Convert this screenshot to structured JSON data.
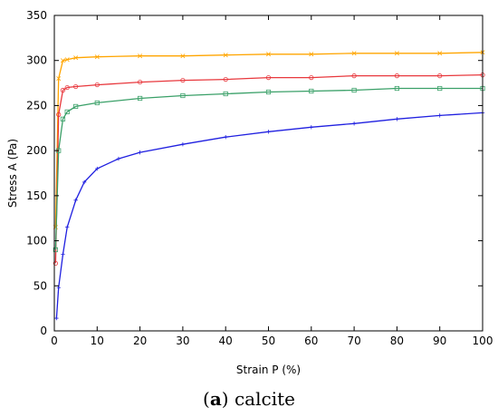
{
  "caption": {
    "open": "(",
    "letter": "a",
    "close": ")",
    "text": " calcite"
  },
  "chart_data": {
    "type": "line",
    "xlabel": "Strain P (%)",
    "ylabel": "Stress A (Pa)",
    "xlim": [
      0,
      100
    ],
    "ylim": [
      0,
      350
    ],
    "xticks": [
      0,
      10,
      20,
      30,
      40,
      50,
      60,
      70,
      80,
      90,
      100
    ],
    "yticks": [
      0,
      50,
      100,
      150,
      200,
      250,
      300,
      350
    ],
    "grid": false,
    "legend": "none",
    "series": [
      {
        "color": "#ffa500",
        "marker": "x",
        "x": [
          0.3,
          1,
          2,
          3,
          5,
          10,
          20,
          30,
          40,
          50,
          60,
          70,
          80,
          90,
          100
        ],
        "y": [
          115,
          280,
          300,
          301,
          303,
          304,
          305,
          305,
          306,
          307,
          307,
          308,
          308,
          308,
          309
        ]
      },
      {
        "color": "#e8383d",
        "marker": "circle",
        "x": [
          0.3,
          1,
          2,
          3,
          5,
          10,
          20,
          30,
          40,
          50,
          60,
          70,
          80,
          90,
          100
        ],
        "y": [
          75,
          240,
          267,
          270,
          271,
          273,
          276,
          278,
          279,
          281,
          281,
          283,
          283,
          283,
          284
        ]
      },
      {
        "color": "#3aa068",
        "marker": "square",
        "x": [
          0.3,
          1,
          2,
          3,
          5,
          10,
          20,
          30,
          40,
          50,
          60,
          70,
          80,
          90,
          100
        ],
        "y": [
          90,
          200,
          235,
          243,
          249,
          253,
          258,
          261,
          263,
          265,
          266,
          267,
          269,
          269,
          269
        ]
      },
      {
        "color": "#2020e0",
        "marker": "plus",
        "x": [
          0.5,
          1,
          2,
          3,
          5,
          7,
          10,
          15,
          20,
          30,
          40,
          50,
          60,
          70,
          80,
          90,
          100
        ],
        "y": [
          14,
          48,
          85,
          115,
          145,
          165,
          180,
          191,
          198,
          207,
          215,
          221,
          226,
          230,
          235,
          239,
          242
        ]
      }
    ]
  }
}
